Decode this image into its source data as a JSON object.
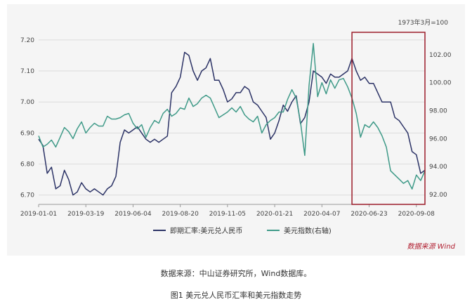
{
  "chart_data": {
    "type": "line",
    "unit_note": "1973年3月=100",
    "x": [
      "2019-01-01",
      "2019-03-19",
      "2019-06-04",
      "2019-08-20",
      "2019-11-05",
      "2020-01-21",
      "2020-04-07",
      "2020-06-23",
      "2020-09-08"
    ],
    "x_ticks": [
      "2019-01-01",
      "2019-03-19",
      "2019-06-04",
      "2019-08-20",
      "2019-11-05",
      "2020-01-21",
      "2020-04-07",
      "2020-06-23",
      "2020-09-08"
    ],
    "y_left": {
      "ticks": [
        "6.70",
        "6.80",
        "6.90",
        "7.00",
        "7.10",
        "7.20"
      ],
      "ylim": [
        6.67,
        7.22
      ]
    },
    "y_right": {
      "ticks": [
        "92.00",
        "94.00",
        "96.00",
        "98.00",
        "100.00",
        "102.00"
      ],
      "ylim": [
        91.3,
        103.5
      ]
    },
    "series": [
      {
        "name": "即期汇率:美元兑人民币",
        "axis": "left",
        "color": "#2c3366",
        "points": [
          [
            "2019-01-01",
            6.88
          ],
          [
            "2019-01-08",
            6.86
          ],
          [
            "2019-01-15",
            6.77
          ],
          [
            "2019-01-22",
            6.79
          ],
          [
            "2019-01-29",
            6.72
          ],
          [
            "2019-02-05",
            6.73
          ],
          [
            "2019-02-12",
            6.78
          ],
          [
            "2019-02-19",
            6.75
          ],
          [
            "2019-02-26",
            6.7
          ],
          [
            "2019-03-05",
            6.71
          ],
          [
            "2019-03-12",
            6.74
          ],
          [
            "2019-03-19",
            6.72
          ],
          [
            "2019-03-26",
            6.71
          ],
          [
            "2019-04-02",
            6.72
          ],
          [
            "2019-04-09",
            6.71
          ],
          [
            "2019-04-16",
            6.7
          ],
          [
            "2019-04-23",
            6.72
          ],
          [
            "2019-04-30",
            6.73
          ],
          [
            "2019-05-07",
            6.76
          ],
          [
            "2019-05-14",
            6.87
          ],
          [
            "2019-05-21",
            6.91
          ],
          [
            "2019-05-28",
            6.9
          ],
          [
            "2019-06-04",
            6.91
          ],
          [
            "2019-06-11",
            6.92
          ],
          [
            "2019-06-18",
            6.9
          ],
          [
            "2019-06-25",
            6.88
          ],
          [
            "2019-07-02",
            6.87
          ],
          [
            "2019-07-09",
            6.88
          ],
          [
            "2019-07-16",
            6.87
          ],
          [
            "2019-07-23",
            6.88
          ],
          [
            "2019-07-30",
            6.89
          ],
          [
            "2019-08-06",
            7.03
          ],
          [
            "2019-08-13",
            7.05
          ],
          [
            "2019-08-20",
            7.08
          ],
          [
            "2019-08-27",
            7.16
          ],
          [
            "2019-09-03",
            7.15
          ],
          [
            "2019-09-10",
            7.1
          ],
          [
            "2019-09-17",
            7.07
          ],
          [
            "2019-09-24",
            7.1
          ],
          [
            "2019-10-01",
            7.11
          ],
          [
            "2019-10-08",
            7.14
          ],
          [
            "2019-10-15",
            7.07
          ],
          [
            "2019-10-22",
            7.07
          ],
          [
            "2019-10-29",
            7.04
          ],
          [
            "2019-11-05",
            7.0
          ],
          [
            "2019-11-12",
            7.01
          ],
          [
            "2019-11-19",
            7.03
          ],
          [
            "2019-11-26",
            7.03
          ],
          [
            "2019-12-03",
            7.05
          ],
          [
            "2019-12-10",
            7.04
          ],
          [
            "2019-12-17",
            7.0
          ],
          [
            "2019-12-24",
            6.99
          ],
          [
            "2019-12-31",
            6.97
          ],
          [
            "2020-01-07",
            6.95
          ],
          [
            "2020-01-14",
            6.88
          ],
          [
            "2020-01-21",
            6.9
          ],
          [
            "2020-01-28",
            6.94
          ],
          [
            "2020-02-04",
            6.99
          ],
          [
            "2020-02-11",
            6.97
          ],
          [
            "2020-02-18",
            7.0
          ],
          [
            "2020-02-25",
            7.02
          ],
          [
            "2020-03-03",
            6.93
          ],
          [
            "2020-03-10",
            6.95
          ],
          [
            "2020-03-17",
            7.0
          ],
          [
            "2020-03-24",
            7.1
          ],
          [
            "2020-03-31",
            7.09
          ],
          [
            "2020-04-07",
            7.08
          ],
          [
            "2020-04-14",
            7.06
          ],
          [
            "2020-04-21",
            7.09
          ],
          [
            "2020-04-28",
            7.08
          ],
          [
            "2020-05-05",
            7.08
          ],
          [
            "2020-05-12",
            7.09
          ],
          [
            "2020-05-19",
            7.1
          ],
          [
            "2020-05-26",
            7.14
          ],
          [
            "2020-06-02",
            7.1
          ],
          [
            "2020-06-09",
            7.07
          ],
          [
            "2020-06-16",
            7.08
          ],
          [
            "2020-06-23",
            7.06
          ],
          [
            "2020-06-30",
            7.06
          ],
          [
            "2020-07-07",
            7.03
          ],
          [
            "2020-07-14",
            7.0
          ],
          [
            "2020-07-21",
            7.0
          ],
          [
            "2020-07-28",
            7.0
          ],
          [
            "2020-08-04",
            6.95
          ],
          [
            "2020-08-11",
            6.94
          ],
          [
            "2020-08-18",
            6.92
          ],
          [
            "2020-08-25",
            6.9
          ],
          [
            "2020-09-01",
            6.84
          ],
          [
            "2020-09-08",
            6.83
          ],
          [
            "2020-09-15",
            6.77
          ],
          [
            "2020-09-22",
            6.78
          ]
        ]
      },
      {
        "name": "美元指数(右轴)",
        "axis": "right",
        "color": "#3f9a88",
        "points": [
          [
            "2019-01-01",
            96.2
          ],
          [
            "2019-01-08",
            95.4
          ],
          [
            "2019-01-15",
            95.6
          ],
          [
            "2019-01-22",
            95.9
          ],
          [
            "2019-01-29",
            95.4
          ],
          [
            "2019-02-05",
            96.1
          ],
          [
            "2019-02-12",
            96.8
          ],
          [
            "2019-02-19",
            96.5
          ],
          [
            "2019-02-26",
            96.0
          ],
          [
            "2019-03-05",
            96.7
          ],
          [
            "2019-03-12",
            97.2
          ],
          [
            "2019-03-19",
            96.4
          ],
          [
            "2019-03-26",
            96.8
          ],
          [
            "2019-04-02",
            97.1
          ],
          [
            "2019-04-09",
            96.9
          ],
          [
            "2019-04-16",
            96.9
          ],
          [
            "2019-04-23",
            97.6
          ],
          [
            "2019-04-30",
            97.4
          ],
          [
            "2019-05-07",
            97.4
          ],
          [
            "2019-05-14",
            97.5
          ],
          [
            "2019-05-21",
            97.7
          ],
          [
            "2019-05-28",
            97.8
          ],
          [
            "2019-06-04",
            97.1
          ],
          [
            "2019-06-11",
            96.7
          ],
          [
            "2019-06-18",
            97.0
          ],
          [
            "2019-06-25",
            96.1
          ],
          [
            "2019-07-02",
            96.8
          ],
          [
            "2019-07-09",
            97.3
          ],
          [
            "2019-07-16",
            97.1
          ],
          [
            "2019-07-23",
            97.8
          ],
          [
            "2019-07-30",
            98.1
          ],
          [
            "2019-08-06",
            97.6
          ],
          [
            "2019-08-13",
            97.8
          ],
          [
            "2019-08-20",
            98.2
          ],
          [
            "2019-08-27",
            98.1
          ],
          [
            "2019-09-03",
            98.9
          ],
          [
            "2019-09-10",
            98.3
          ],
          [
            "2019-09-17",
            98.5
          ],
          [
            "2019-09-24",
            98.9
          ],
          [
            "2019-10-01",
            99.1
          ],
          [
            "2019-10-08",
            98.9
          ],
          [
            "2019-10-15",
            98.2
          ],
          [
            "2019-10-22",
            97.5
          ],
          [
            "2019-10-29",
            97.7
          ],
          [
            "2019-11-05",
            97.9
          ],
          [
            "2019-11-12",
            98.2
          ],
          [
            "2019-11-19",
            97.9
          ],
          [
            "2019-11-26",
            98.3
          ],
          [
            "2019-12-03",
            97.7
          ],
          [
            "2019-12-10",
            97.4
          ],
          [
            "2019-12-17",
            97.2
          ],
          [
            "2019-12-24",
            97.6
          ],
          [
            "2019-12-31",
            96.4
          ],
          [
            "2020-01-07",
            97.0
          ],
          [
            "2020-01-14",
            97.3
          ],
          [
            "2020-01-21",
            97.5
          ],
          [
            "2020-01-28",
            97.9
          ],
          [
            "2020-02-04",
            97.9
          ],
          [
            "2020-02-11",
            98.8
          ],
          [
            "2020-02-18",
            99.5
          ],
          [
            "2020-02-25",
            98.9
          ],
          [
            "2020-03-03",
            97.2
          ],
          [
            "2020-03-10",
            94.8
          ],
          [
            "2020-03-17",
            99.8
          ],
          [
            "2020-03-24",
            102.8
          ],
          [
            "2020-03-31",
            99.0
          ],
          [
            "2020-04-07",
            100.0
          ],
          [
            "2020-04-14",
            99.2
          ],
          [
            "2020-04-21",
            100.2
          ],
          [
            "2020-04-28",
            99.6
          ],
          [
            "2020-05-05",
            100.2
          ],
          [
            "2020-05-12",
            100.3
          ],
          [
            "2020-05-19",
            99.7
          ],
          [
            "2020-05-26",
            98.9
          ],
          [
            "2020-06-02",
            97.8
          ],
          [
            "2020-06-09",
            96.1
          ],
          [
            "2020-06-16",
            97.0
          ],
          [
            "2020-06-23",
            96.8
          ],
          [
            "2020-06-30",
            97.2
          ],
          [
            "2020-07-07",
            96.8
          ],
          [
            "2020-07-14",
            96.2
          ],
          [
            "2020-07-21",
            95.4
          ],
          [
            "2020-07-28",
            93.7
          ],
          [
            "2020-08-04",
            93.4
          ],
          [
            "2020-08-11",
            93.1
          ],
          [
            "2020-08-18",
            92.8
          ],
          [
            "2020-08-25",
            93.0
          ],
          [
            "2020-09-01",
            92.4
          ],
          [
            "2020-09-08",
            93.4
          ],
          [
            "2020-09-15",
            93.0
          ],
          [
            "2020-09-22",
            93.7
          ]
        ]
      }
    ],
    "highlight": {
      "from": "2020-05-26",
      "to": "2020-09-22",
      "color": "#9b1c2a"
    },
    "source_tag": "数据来源 Wind"
  },
  "source_note": "数据来源：中山证券研究所，Wind数据库。",
  "caption": "图1 美元兑人民币汇率和美元指数走势"
}
